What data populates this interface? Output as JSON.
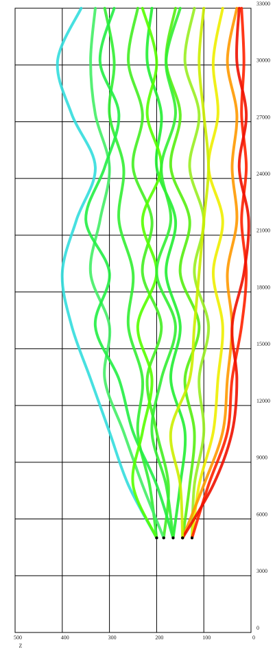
{
  "chart_data": {
    "type": "line",
    "xlabel": "Z",
    "xlim": [
      500,
      0
    ],
    "xticks": [
      500,
      400,
      300,
      200,
      100,
      0
    ],
    "ylim": [
      0,
      33000
    ],
    "yticks": [
      0,
      3000,
      6000,
      9000,
      12000,
      15000,
      18000,
      21000,
      24000,
      27000,
      30000,
      33000
    ],
    "grid": true,
    "series": [
      {
        "color": "#33ee33",
        "x": [
          200,
          215,
          240,
          230,
          260,
          250,
          280,
          270,
          300,
          290,
          310
        ],
        "values": [
          5000,
          7800,
          10600,
          13400,
          16200,
          19000,
          21800,
          24600,
          27400,
          30200,
          33000
        ]
      },
      {
        "color": "#44ee22",
        "x": [
          185,
          175,
          200,
          220,
          190,
          230,
          210,
          250,
          230,
          260,
          240
        ],
        "values": [
          5000,
          7800,
          10600,
          13400,
          16200,
          19000,
          21800,
          24600,
          27400,
          30200,
          33000
        ]
      },
      {
        "color": "#22ee33",
        "x": [
          165,
          150,
          140,
          170,
          150,
          180,
          160,
          200,
          190,
          220,
          210
        ],
        "values": [
          5000,
          7800,
          10600,
          13400,
          16200,
          19000,
          21800,
          24600,
          27400,
          30200,
          33000
        ]
      },
      {
        "color": "#55ee11",
        "x": [
          145,
          130,
          120,
          140,
          110,
          150,
          130,
          170,
          150,
          180,
          160
        ],
        "values": [
          5000,
          7800,
          10600,
          13400,
          16200,
          19000,
          21800,
          24600,
          27400,
          30200,
          33000
        ]
      },
      {
        "color": "#99ee22",
        "x": [
          125,
          120,
          100,
          110,
          90,
          120,
          100,
          130,
          110,
          140,
          120
        ],
        "values": [
          5000,
          7800,
          10600,
          13400,
          16200,
          19000,
          21800,
          24600,
          27400,
          30200,
          33000
        ]
      },
      {
        "color": "#eeee00",
        "x": [
          125,
          110,
          80,
          70,
          60,
          80,
          60,
          90,
          70,
          80,
          60
        ],
        "values": [
          5000,
          7800,
          10600,
          13400,
          16200,
          19000,
          21800,
          24600,
          27400,
          30200,
          33000
        ]
      },
      {
        "color": "#ff9900",
        "x": [
          145,
          100,
          60,
          50,
          40,
          50,
          30,
          40,
          30,
          50,
          30
        ],
        "values": [
          5000,
          7800,
          10600,
          13400,
          16200,
          19000,
          21800,
          24600,
          27400,
          30200,
          33000
        ]
      },
      {
        "color": "#ff2200",
        "x": [
          125,
          90,
          50,
          40,
          20,
          10,
          20,
          10,
          20,
          15,
          20
        ],
        "values": [
          5000,
          7800,
          10600,
          13400,
          16200,
          19000,
          21800,
          24600,
          27400,
          30200,
          33000
        ]
      },
      {
        "color": "#ee1100",
        "x": [
          145,
          80,
          40,
          30,
          40,
          15,
          5,
          25,
          10,
          30,
          25
        ],
        "values": [
          5000,
          7800,
          10600,
          13400,
          16200,
          19000,
          21800,
          24600,
          27400,
          30200,
          33000
        ]
      },
      {
        "color": "#33dddd",
        "x": [
          200,
          260,
          300,
          340,
          380,
          400,
          370,
          330,
          380,
          410,
          360
        ],
        "values": [
          5000,
          7800,
          10600,
          13400,
          16200,
          19000,
          21800,
          24600,
          27400,
          30200,
          33000
        ]
      },
      {
        "color": "#44ee66",
        "x": [
          185,
          230,
          270,
          310,
          300,
          340,
          320,
          300,
          330,
          340,
          330
        ],
        "values": [
          5000,
          7800,
          10600,
          13400,
          16200,
          19000,
          21800,
          24600,
          27400,
          30200,
          33000
        ]
      },
      {
        "color": "#22ee44",
        "x": [
          165,
          200,
          250,
          280,
          330,
          300,
          350,
          310,
          280,
          320,
          290
        ],
        "values": [
          5000,
          7800,
          10600,
          13400,
          16200,
          19000,
          21800,
          24600,
          27400,
          30200,
          33000
        ]
      },
      {
        "color": "#55ff00",
        "x": [
          200,
          250,
          230,
          210,
          240,
          200,
          230,
          190,
          220,
          200,
          230
        ],
        "values": [
          5000,
          7800,
          10600,
          13400,
          16200,
          19000,
          21800,
          24600,
          27400,
          30200,
          33000
        ]
      },
      {
        "color": "#33ee33",
        "x": [
          165,
          180,
          210,
          190,
          160,
          200,
          170,
          190,
          160,
          180,
          150
        ],
        "values": [
          5000,
          7800,
          10600,
          13400,
          16200,
          19000,
          21800,
          24600,
          27400,
          30200,
          33000
        ]
      },
      {
        "color": "#ccee00",
        "x": [
          145,
          150,
          170,
          130,
          120,
          110,
          100,
          90,
          100,
          110,
          100
        ],
        "values": [
          5000,
          7800,
          10600,
          13400,
          16200,
          19000,
          21800,
          24600,
          27400,
          30200,
          33000
        ]
      }
    ]
  }
}
